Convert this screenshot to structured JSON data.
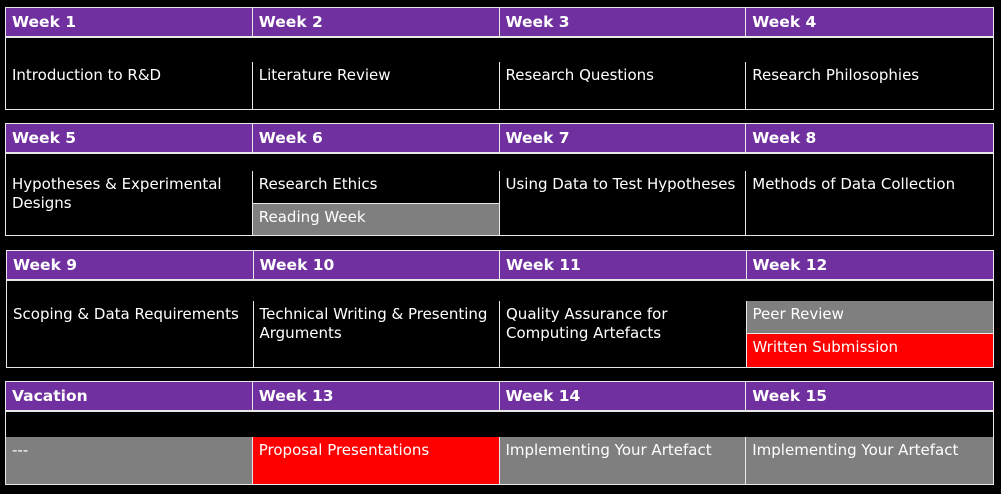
{
  "colors": {
    "header": "#7030a0",
    "background": "#000000",
    "grey_cell": "#7f7f7f",
    "red_cell": "#ff0000",
    "border": "#e8e8e8"
  },
  "blocks": [
    {
      "headers": [
        "Week 1",
        "Week 2",
        "Week 3",
        "Week 4"
      ],
      "cells": [
        [
          {
            "text": "Introduction to R&D",
            "bg": "black"
          }
        ],
        [
          {
            "text": "Literature Review",
            "bg": "black"
          }
        ],
        [
          {
            "text": "Research Questions",
            "bg": "black"
          }
        ],
        [
          {
            "text": "Research Philosophies",
            "bg": "black"
          }
        ]
      ]
    },
    {
      "headers": [
        "Week 5",
        "Week 6",
        "Week 7",
        "Week 8"
      ],
      "cells": [
        [
          {
            "text": "Hypotheses & Experimental Designs",
            "bg": "black"
          }
        ],
        [
          {
            "text": "Research Ethics",
            "bg": "black"
          },
          {
            "text": "Reading Week",
            "bg": "grey"
          }
        ],
        [
          {
            "text": "Using Data to Test Hypotheses",
            "bg": "black"
          }
        ],
        [
          {
            "text": "Methods of Data Collection",
            "bg": "black"
          }
        ]
      ]
    },
    {
      "headers": [
        "Week 9",
        "Week 10",
        "Week 11",
        "Week 12"
      ],
      "cells": [
        [
          {
            "text": "Scoping & Data Requirements",
            "bg": "black"
          }
        ],
        [
          {
            "text": "Technical Writing & Presenting Arguments",
            "bg": "black"
          }
        ],
        [
          {
            "text": "Quality Assurance for Computing Artefacts",
            "bg": "black"
          }
        ],
        [
          {
            "text": "Peer Review",
            "bg": "grey"
          },
          {
            "text": "Written Submission",
            "bg": "red"
          }
        ]
      ]
    },
    {
      "headers": [
        "Vacation",
        "Week 13",
        "Week 14",
        "Week 15"
      ],
      "cells": [
        [
          {
            "text": "---",
            "bg": "grey"
          }
        ],
        [
          {
            "text": "Proposal Presentations",
            "bg": "red"
          }
        ],
        [
          {
            "text": "Implementing Your Artefact",
            "bg": "grey"
          }
        ],
        [
          {
            "text": "Implementing Your Artefact",
            "bg": "grey"
          }
        ]
      ]
    }
  ]
}
